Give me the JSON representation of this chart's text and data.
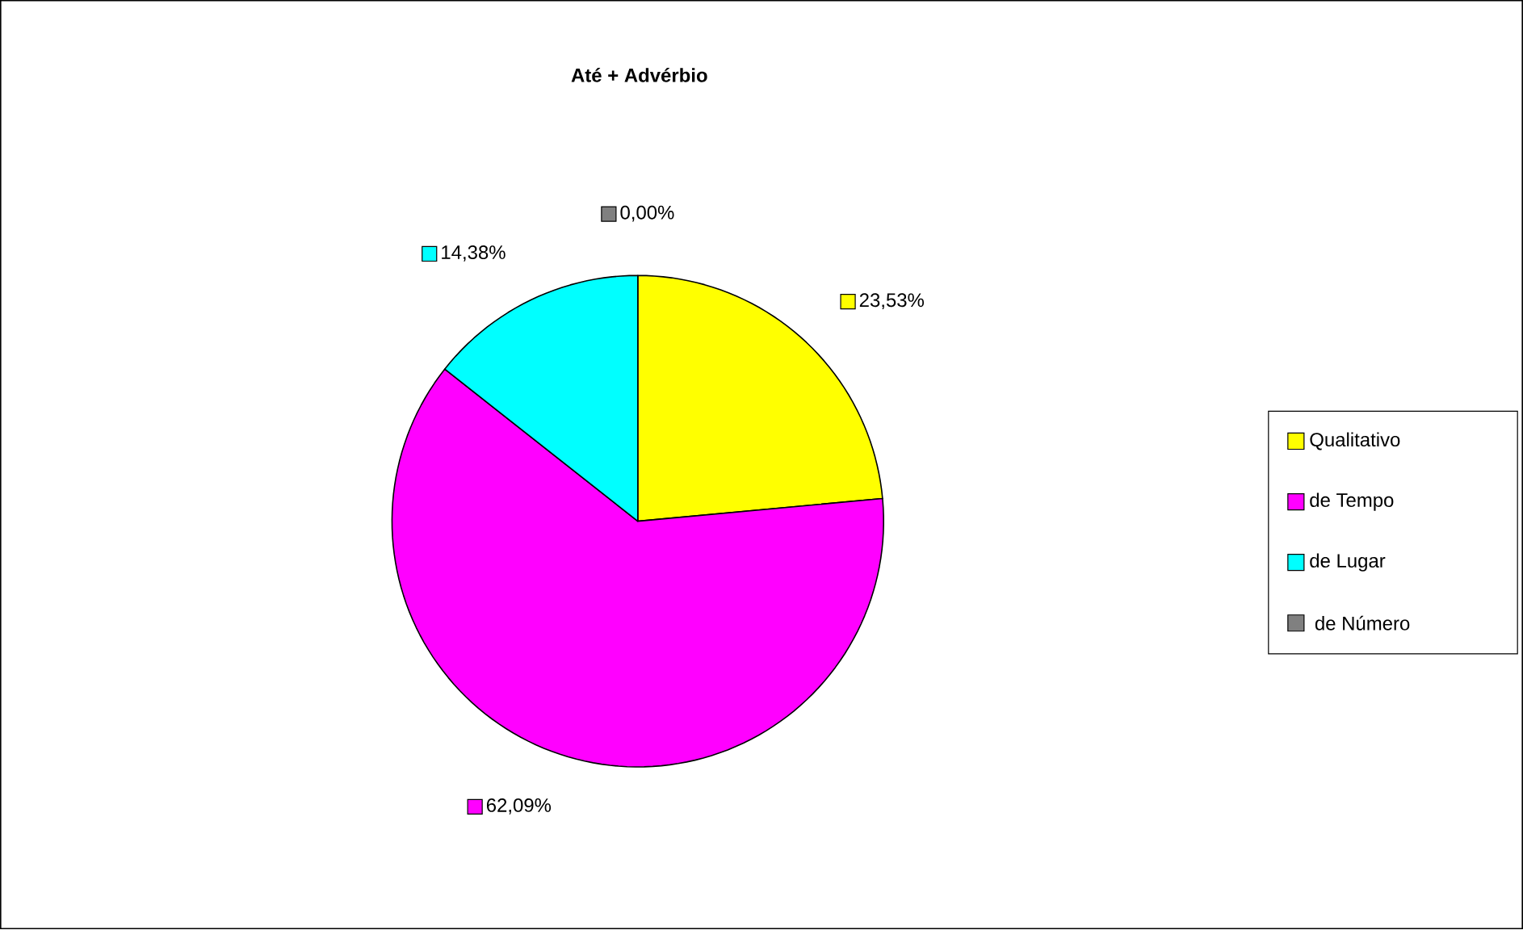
{
  "chart_data": {
    "type": "pie",
    "title": "Até + Advérbio",
    "categories": [
      "Qualitativo",
      "de Tempo",
      "de Lugar",
      " de Número"
    ],
    "values": [
      23.53,
      62.09,
      14.38,
      0.0
    ],
    "value_labels": [
      "23,53%",
      "62,09%",
      "14,38%",
      "0,00%"
    ],
    "colors": [
      "#ffff00",
      "#ff00ff",
      "#00ffff",
      "#808080"
    ],
    "legend": "right"
  }
}
